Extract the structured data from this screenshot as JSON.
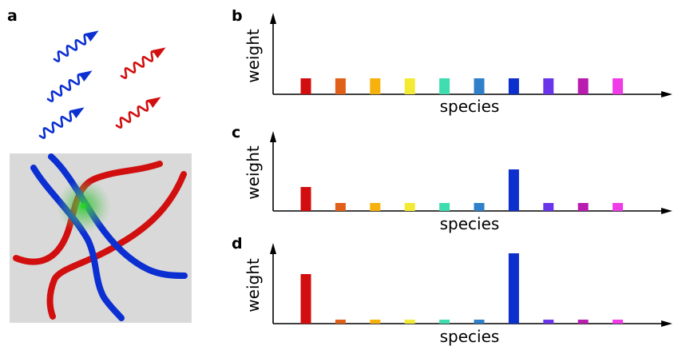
{
  "panel_a": {
    "letter": "a",
    "photons_blue": "#0b2fd1",
    "photons_red": "#d10f0f",
    "background": "#d9d9d9",
    "polymer_red": "#d10f0f",
    "polymer_blue": "#0b2fd1",
    "glow_color": "#37c837"
  },
  "chart_data": [
    {
      "type": "bar",
      "letter": "b",
      "xlabel": "species",
      "ylabel": "weight",
      "values": [
        0.2,
        0.2,
        0.2,
        0.2,
        0.2,
        0.2,
        0.2,
        0.2,
        0.2,
        0.2
      ],
      "colors": [
        "#d10d0d",
        "#e0601a",
        "#f6b10d",
        "#f3ea34",
        "#3fdcb0",
        "#2f80c8",
        "#0d2fcc",
        "#6a34e8",
        "#b81db0",
        "#f03ce8"
      ],
      "ylim": [
        0,
        1
      ]
    },
    {
      "type": "bar",
      "letter": "c",
      "xlabel": "species",
      "ylabel": "weight",
      "values": [
        0.3,
        0.1,
        0.1,
        0.1,
        0.1,
        0.1,
        0.52,
        0.1,
        0.1,
        0.1
      ],
      "colors": [
        "#d10d0d",
        "#e0601a",
        "#f6b10d",
        "#f3ea34",
        "#3fdcb0",
        "#2f80c8",
        "#0d2fcc",
        "#6a34e8",
        "#b81db0",
        "#f03ce8"
      ],
      "ylim": [
        0,
        1
      ]
    },
    {
      "type": "bar",
      "letter": "d",
      "xlabel": "species",
      "ylabel": "weight",
      "values": [
        0.62,
        0.05,
        0.05,
        0.05,
        0.05,
        0.05,
        0.88,
        0.05,
        0.05,
        0.05
      ],
      "colors": [
        "#d10d0d",
        "#e0601a",
        "#f6b10d",
        "#f3ea34",
        "#3fdcb0",
        "#2f80c8",
        "#0d2fcc",
        "#6a34e8",
        "#b81db0",
        "#f03ce8"
      ],
      "ylim": [
        0,
        1
      ]
    }
  ]
}
